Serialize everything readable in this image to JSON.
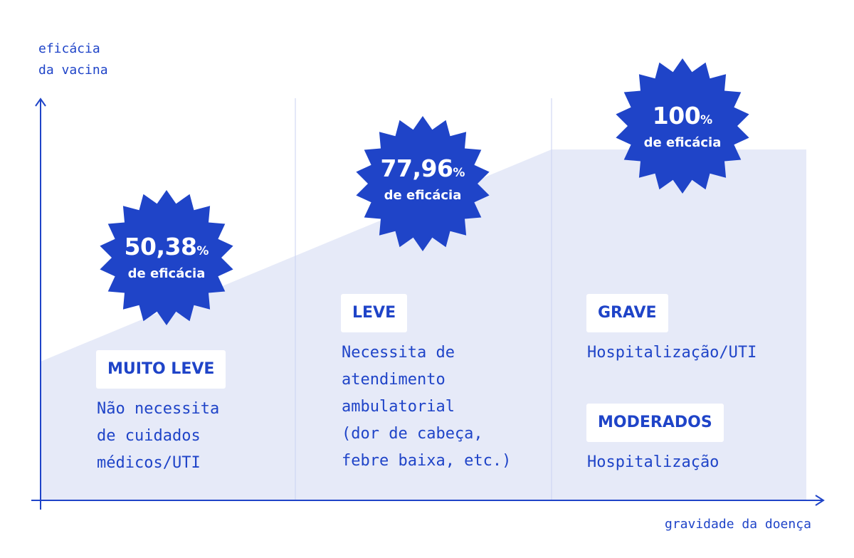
{
  "colors": {
    "primary": "#1f44c8",
    "area_fill": "#e6eaf8",
    "divider": "#c9d2f2",
    "white": "#ffffff"
  },
  "axes": {
    "y_title_lines": [
      "eficácia",
      "da vacina"
    ],
    "x_title": "gravidade da doença"
  },
  "columns": [
    {
      "badge": {
        "value": "50,38",
        "unit": "%",
        "caption": "de eficácia"
      },
      "labels": [
        {
          "text": "MUITO LEVE",
          "description_lines": [
            "Não necessita",
            "de cuidados",
            "médicos/UTI"
          ]
        }
      ]
    },
    {
      "badge": {
        "value": "77,96",
        "unit": "%",
        "caption": "de eficácia"
      },
      "labels": [
        {
          "text": "LEVE",
          "description_lines": [
            "Necessita de",
            "atendimento",
            "ambulatorial",
            "(dor de cabeça,",
            "febre baixa, etc.)"
          ]
        }
      ]
    },
    {
      "badge": {
        "value": "100",
        "unit": "%",
        "caption": "de eficácia"
      },
      "labels": [
        {
          "text": "GRAVE",
          "description_lines": [
            "Hospitalização/UTI"
          ]
        },
        {
          "text": "MODERADOS",
          "description_lines": [
            "Hospitalização"
          ]
        }
      ]
    }
  ]
}
